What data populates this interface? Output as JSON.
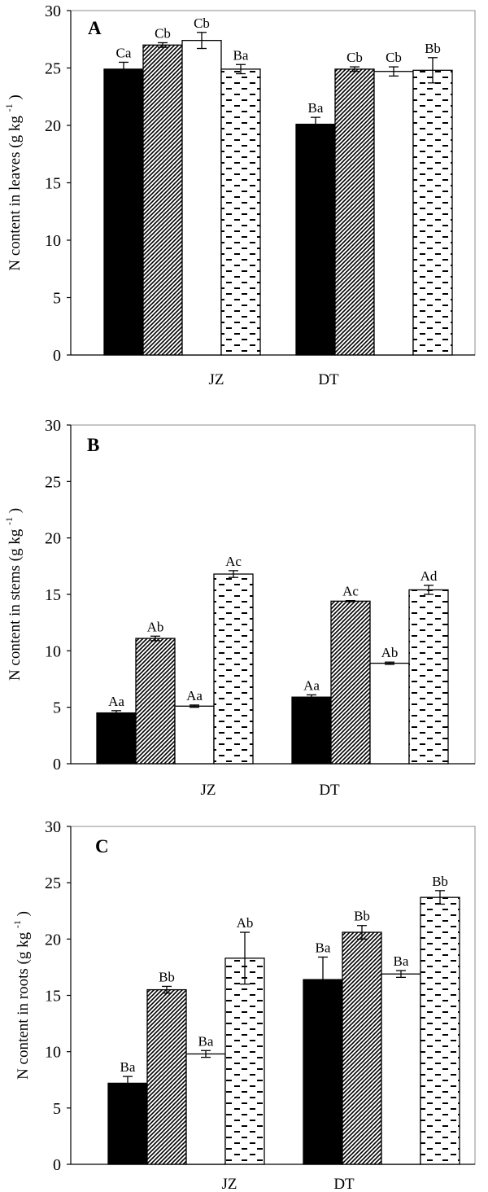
{
  "figure": {
    "colors": {
      "ink": "#000000",
      "frame": "#8c8c8c",
      "background": "#ffffff"
    },
    "bar_fills": [
      "solid-black",
      "diagonal-stripes",
      "white",
      "horizontal-dashes"
    ]
  },
  "chart_data": [
    {
      "type": "bar",
      "panel": "A",
      "ylabel": "N content in leaves",
      "ylabel_unit": "(g kg",
      "ylabel_sup": "-1",
      "ylabel_close": ")",
      "ylim": [
        0,
        30
      ],
      "yticks": [
        "0",
        "5",
        "10",
        "15",
        "20",
        "25",
        "30"
      ],
      "grid": false,
      "categories": [
        "JZ",
        "DT"
      ],
      "series": [
        {
          "values": [
            24.9,
            20.1
          ],
          "errors": [
            0.6,
            0.6
          ],
          "labels": [
            "Ca",
            "Ba"
          ]
        },
        {
          "values": [
            27.0,
            24.9
          ],
          "errors": [
            0.2,
            0.2
          ],
          "labels": [
            "Cb",
            "Cb"
          ]
        },
        {
          "values": [
            27.4,
            24.7
          ],
          "errors": [
            0.7,
            0.4
          ],
          "labels": [
            "Cb",
            "Cb"
          ]
        },
        {
          "values": [
            24.9,
            24.8
          ],
          "errors": [
            0.4,
            1.1
          ],
          "labels": [
            "Ba",
            "Bb"
          ]
        }
      ]
    },
    {
      "type": "bar",
      "panel": "B",
      "ylabel": "N content in stems",
      "ylabel_unit": "(g kg",
      "ylabel_sup": "-1",
      "ylabel_close": ")",
      "ylim": [
        0,
        30
      ],
      "yticks": [
        "0",
        "5",
        "10",
        "15",
        "20",
        "25",
        "30"
      ],
      "grid": false,
      "categories": [
        "JZ",
        "DT"
      ],
      "series": [
        {
          "values": [
            4.5,
            5.9
          ],
          "errors": [
            0.2,
            0.2
          ],
          "labels": [
            "Aa",
            "Aa"
          ]
        },
        {
          "values": [
            11.1,
            14.4
          ],
          "errors": [
            0.2,
            0.05
          ],
          "labels": [
            "Ab",
            "Ac"
          ]
        },
        {
          "values": [
            5.1,
            8.9
          ],
          "errors": [
            0.1,
            0.1
          ],
          "labels": [
            "Aa",
            "Ab"
          ]
        },
        {
          "values": [
            16.8,
            15.4
          ],
          "errors": [
            0.3,
            0.4
          ],
          "labels": [
            "Ac",
            "Ad"
          ]
        }
      ]
    },
    {
      "type": "bar",
      "panel": "C",
      "ylabel": "N content in roots",
      "ylabel_unit": "(g kg",
      "ylabel_sup": "-1",
      "ylabel_close": ")",
      "ylim": [
        0,
        30
      ],
      "yticks": [
        "0",
        "5",
        "10",
        "15",
        "20",
        "25",
        "30"
      ],
      "grid": false,
      "categories": [
        "JZ",
        "DT"
      ],
      "series": [
        {
          "values": [
            7.2,
            16.4
          ],
          "errors": [
            0.6,
            2.0
          ],
          "labels": [
            "Ba",
            "Ba"
          ]
        },
        {
          "values": [
            15.5,
            20.6
          ],
          "errors": [
            0.3,
            0.6
          ],
          "labels": [
            "Bb",
            "Bb"
          ]
        },
        {
          "values": [
            9.8,
            16.9
          ],
          "errors": [
            0.3,
            0.3
          ],
          "labels": [
            "Ba",
            "Ba"
          ]
        },
        {
          "values": [
            18.3,
            23.7
          ],
          "errors": [
            2.3,
            0.6
          ],
          "labels": [
            "Ab",
            "Bb"
          ]
        }
      ]
    }
  ]
}
